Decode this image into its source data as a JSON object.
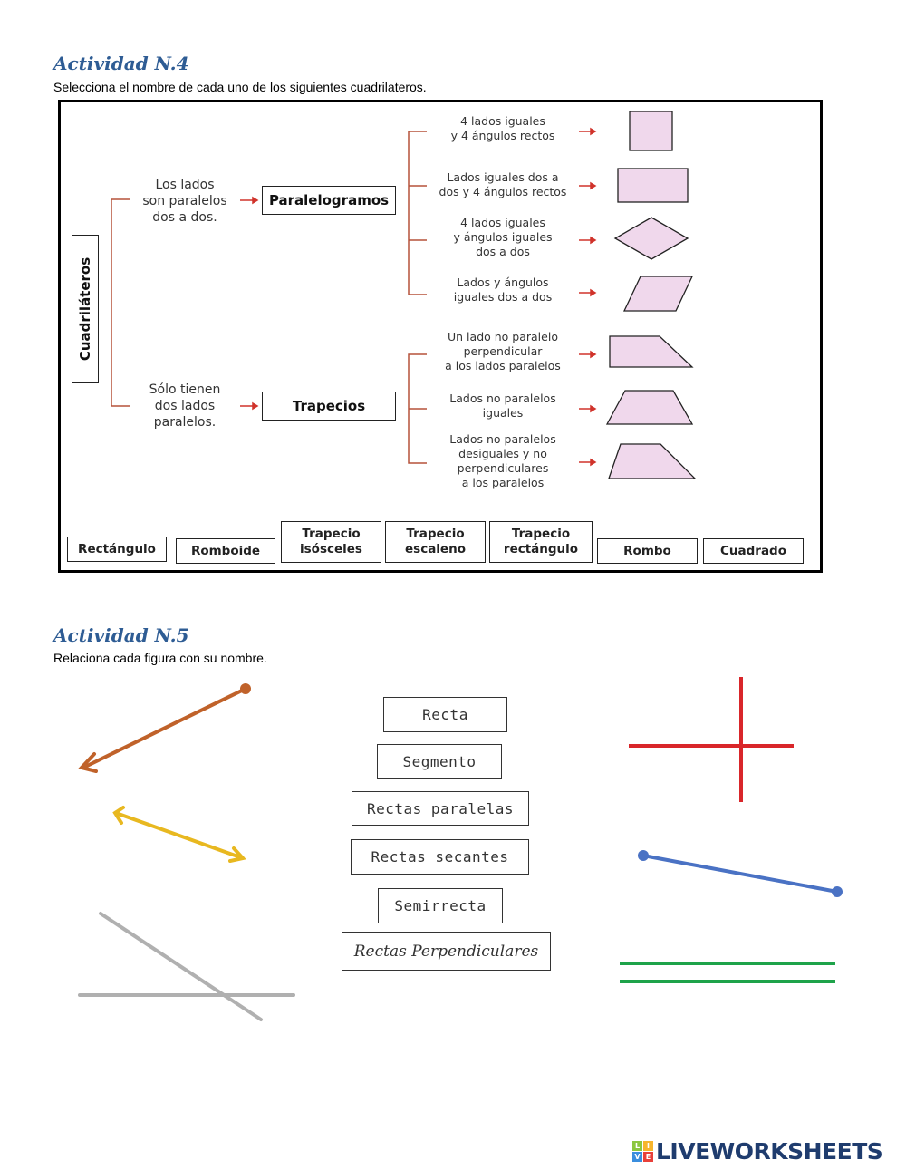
{
  "activity4": {
    "title": "Actividad N.4",
    "instruction": "Selecciona el nombre de cada uno de los siguientes cuadrilateros.",
    "root": "Cuadriláteros",
    "branch1": {
      "condition": [
        "Los lados",
        "son paralelos",
        "dos a dos."
      ],
      "name": "Paralelogramos"
    },
    "branch2": {
      "condition": [
        "Sólo tienen",
        "dos lados",
        "paralelos."
      ],
      "name": "Trapecios"
    },
    "descriptions": [
      [
        "4 lados iguales",
        "y 4 ángulos rectos"
      ],
      [
        "Lados iguales dos a",
        "dos y 4 ángulos rectos"
      ],
      [
        "4 lados iguales",
        "y ángulos iguales",
        "dos a dos"
      ],
      [
        "Lados y ángulos",
        "iguales dos a dos"
      ],
      [
        "Un lado no paralelo",
        "perpendicular",
        "a los lados paralelos"
      ],
      [
        "Lados no paralelos",
        "iguales"
      ],
      [
        "Lados no paralelos",
        "desiguales y no",
        "perpendiculares",
        "a los paralelos"
      ]
    ],
    "labels": [
      [
        "Rectángulo"
      ],
      [
        "Romboide"
      ],
      [
        "Trapecio",
        "isósceles"
      ],
      [
        "Trapecio",
        "escaleno"
      ],
      [
        "Trapecio",
        "rectángulo"
      ],
      [
        "Rombo"
      ],
      [
        "Cuadrado"
      ]
    ],
    "colors": {
      "shape_fill": "#f0d8ec",
      "bracket": "#b5523a",
      "arrow": "#d0332b"
    }
  },
  "activity5": {
    "title": "Actividad N.5",
    "instruction": "Relaciona cada figura con su nombre.",
    "names": [
      "Recta",
      "Segmento",
      "Rectas paralelas",
      "Rectas secantes",
      "Semirrecta",
      "Rectas Perpendiculares"
    ],
    "colors": {
      "semirrecta": "#c0622a",
      "recta": "#e8b820",
      "secantes": "#b0b0b0",
      "perpendiculares": "#d9262a",
      "segmento": "#4a72c4",
      "paralelas": "#1ea34a"
    }
  },
  "footer": {
    "logo_text": "LIVEWORKSHEETS",
    "logo_letters": [
      "L",
      "I",
      "V",
      "E"
    ]
  }
}
